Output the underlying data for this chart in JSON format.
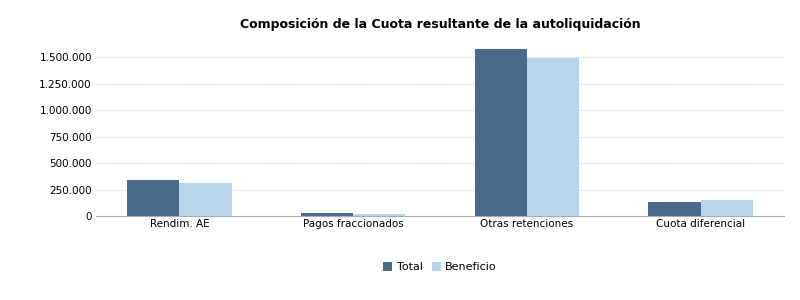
{
  "title": "Composición de la Cuota resultante de la autoliquidación",
  "categories": [
    "Rendim. AE",
    "Pagos fraccionados",
    "Otras retenciones",
    "Cuota diferencial"
  ],
  "total_values": [
    340000,
    25000,
    1575000,
    130000
  ],
  "beneficio_values": [
    315000,
    22000,
    1490000,
    155000
  ],
  "total_color": "#4a6a8a",
  "beneficio_color": "#b8d4ea",
  "background_color": "#ffffff",
  "plot_bg_color": "#ffffff",
  "ylim": [
    0,
    1700000
  ],
  "yticks": [
    0,
    250000,
    500000,
    750000,
    1000000,
    1250000,
    1500000
  ],
  "legend_labels": [
    "Total",
    "Beneficio"
  ],
  "bar_width": 0.3,
  "title_fontsize": 9,
  "tick_fontsize": 7.5,
  "legend_fontsize": 8,
  "grid_color": "#cccccc",
  "spine_color": "#aaaaaa"
}
